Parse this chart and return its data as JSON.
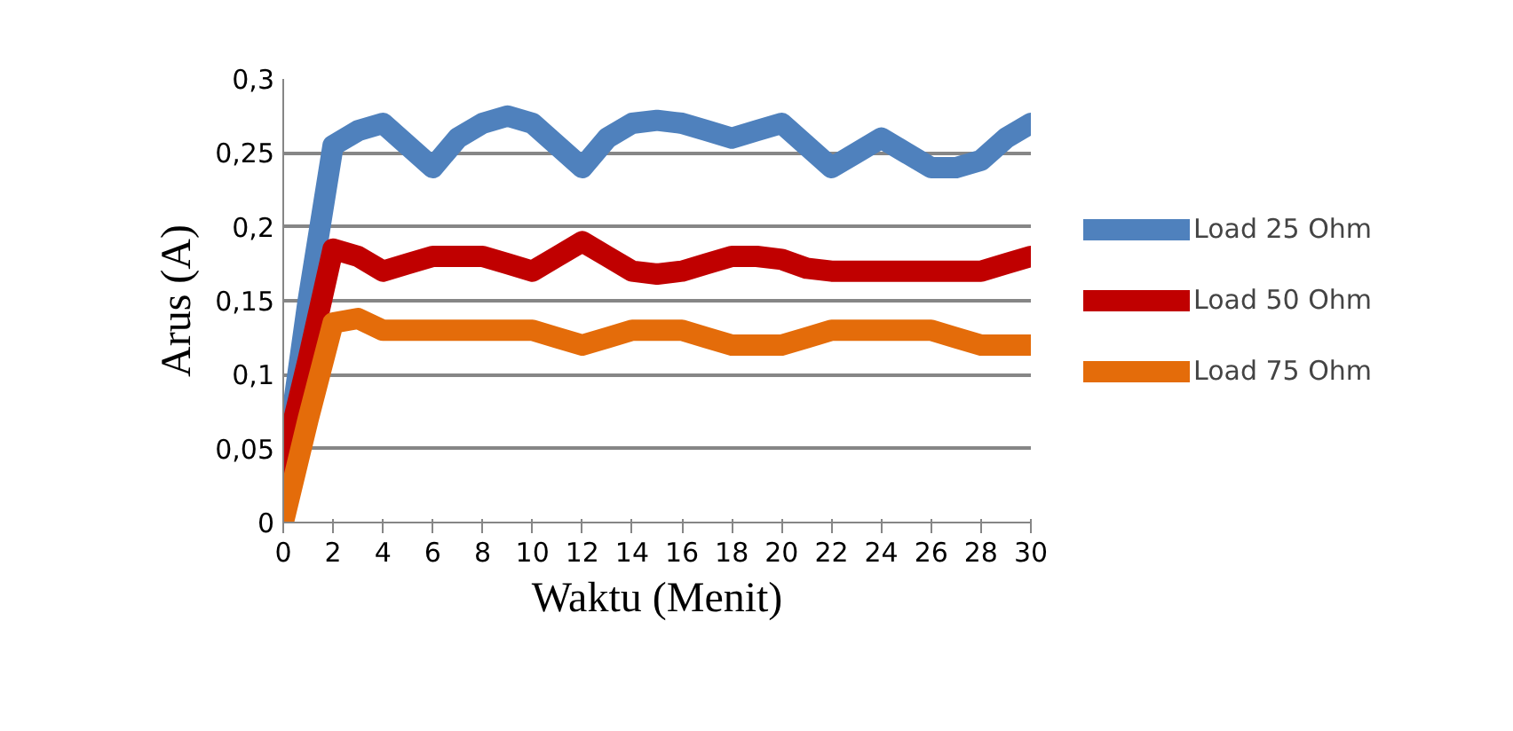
{
  "chart_data": {
    "type": "line",
    "xlabel": "Waktu (Menit)",
    "ylabel": "Arus (A)",
    "x": [
      0,
      1,
      2,
      3,
      4,
      5,
      6,
      7,
      8,
      9,
      10,
      11,
      12,
      13,
      14,
      15,
      16,
      17,
      18,
      19,
      20,
      21,
      22,
      23,
      24,
      25,
      26,
      27,
      28,
      29,
      30
    ],
    "series": [
      {
        "name": "Load 25 Ohm",
        "color": "#4f81bd",
        "values": [
          0.03,
          0.15,
          0.255,
          0.265,
          0.27,
          0.255,
          0.24,
          0.26,
          0.27,
          0.275,
          0.27,
          0.255,
          0.24,
          0.26,
          0.27,
          0.272,
          0.27,
          0.265,
          0.26,
          0.265,
          0.27,
          0.255,
          0.24,
          0.25,
          0.26,
          0.25,
          0.24,
          0.24,
          0.245,
          0.26,
          0.27
        ]
      },
      {
        "name": "Load 50 Ohm",
        "color": "#c00000",
        "values": [
          0.04,
          0.11,
          0.185,
          0.18,
          0.17,
          0.175,
          0.18,
          0.18,
          0.18,
          0.175,
          0.17,
          0.18,
          0.19,
          0.18,
          0.17,
          0.168,
          0.17,
          0.175,
          0.18,
          0.18,
          0.178,
          0.172,
          0.17,
          0.17,
          0.17,
          0.17,
          0.17,
          0.17,
          0.17,
          0.175,
          0.18
        ]
      },
      {
        "name": "Load 75 Ohm",
        "color": "#e46c0a",
        "values": [
          0,
          0.07,
          0.135,
          0.138,
          0.13,
          0.13,
          0.13,
          0.13,
          0.13,
          0.13,
          0.13,
          0.125,
          0.12,
          0.125,
          0.13,
          0.13,
          0.13,
          0.125,
          0.12,
          0.12,
          0.12,
          0.125,
          0.13,
          0.13,
          0.13,
          0.13,
          0.13,
          0.125,
          0.12,
          0.12,
          0.12
        ]
      }
    ],
    "xlim": [
      0,
      30
    ],
    "xticks": [
      0,
      2,
      4,
      6,
      8,
      10,
      12,
      14,
      16,
      18,
      20,
      22,
      24,
      26,
      28,
      30
    ],
    "ylim": [
      0,
      0.3
    ],
    "yticks": [
      {
        "value": 0,
        "label": "0"
      },
      {
        "value": 0.05,
        "label": "0,05"
      },
      {
        "value": 0.1,
        "label": "0,1"
      },
      {
        "value": 0.15,
        "label": "0,15"
      },
      {
        "value": 0.2,
        "label": "0,2"
      },
      {
        "value": 0.25,
        "label": "0,25"
      },
      {
        "value": 0.3,
        "label": "0,3"
      }
    ],
    "grid": "y",
    "legend": "right",
    "line_style": "solid"
  }
}
